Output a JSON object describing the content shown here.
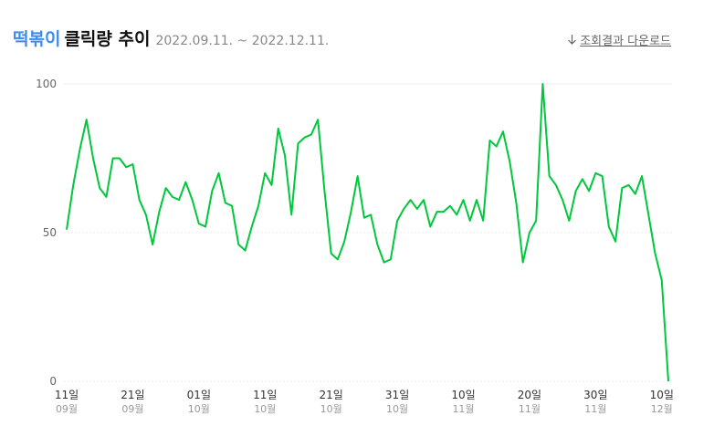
{
  "chart_data": {
    "type": "line",
    "keyword": "떡볶이",
    "title": "클릭량 추이",
    "date_range": "2022.09.11. ~ 2022.12.11.",
    "categories": [
      "11일",
      null,
      null,
      null,
      null,
      null,
      null,
      null,
      null,
      null,
      "21일",
      null,
      null,
      null,
      null,
      null,
      null,
      null,
      null,
      null,
      "01일",
      null,
      null,
      null,
      null,
      null,
      null,
      null,
      null,
      null,
      "11일",
      null,
      null,
      null,
      null,
      null,
      null,
      null,
      null,
      null,
      "21일",
      null,
      null,
      null,
      null,
      null,
      null,
      null,
      null,
      null,
      "31일",
      null,
      null,
      null,
      null,
      null,
      null,
      null,
      null,
      null,
      "10일",
      null,
      null,
      null,
      null,
      null,
      null,
      null,
      null,
      null,
      "20일",
      null,
      null,
      null,
      null,
      null,
      null,
      null,
      null,
      null,
      "30일",
      null,
      null,
      null,
      null,
      null,
      null,
      null,
      null,
      null,
      "10일",
      null
    ],
    "category_months": [
      "09월",
      null,
      null,
      null,
      null,
      null,
      null,
      null,
      null,
      null,
      "09월",
      null,
      null,
      null,
      null,
      null,
      null,
      null,
      null,
      null,
      "10월",
      null,
      null,
      null,
      null,
      null,
      null,
      null,
      null,
      null,
      "10월",
      null,
      null,
      null,
      null,
      null,
      null,
      null,
      null,
      null,
      "10월",
      null,
      null,
      null,
      null,
      null,
      null,
      null,
      null,
      null,
      "10월",
      null,
      null,
      null,
      null,
      null,
      null,
      null,
      null,
      null,
      "11월",
      null,
      null,
      null,
      null,
      null,
      null,
      null,
      null,
      null,
      "11월",
      null,
      null,
      null,
      null,
      null,
      null,
      null,
      null,
      null,
      "11월",
      null,
      null,
      null,
      null,
      null,
      null,
      null,
      null,
      null,
      "12월",
      null
    ],
    "values": [
      51,
      66,
      78,
      88,
      75,
      65,
      62,
      75,
      75,
      72,
      73,
      61,
      56,
      46,
      57,
      65,
      62,
      61,
      67,
      61,
      53,
      52,
      64,
      70,
      60,
      59,
      46,
      44,
      52,
      59,
      70,
      66,
      85,
      76,
      56,
      80,
      82,
      83,
      88,
      64,
      43,
      41,
      47,
      57,
      69,
      55,
      56,
      46,
      40,
      41,
      54,
      58,
      61,
      58,
      61,
      52,
      57,
      57,
      59,
      56,
      61,
      54,
      61,
      54,
      81,
      79,
      84,
      74,
      60,
      40,
      50,
      54,
      100,
      69,
      66,
      61,
      54,
      64,
      68,
      64,
      70,
      69,
      52,
      47,
      65,
      66,
      63,
      69,
      56,
      43,
      34,
      0
    ],
    "color": "#00c73c",
    "ylim": [
      0,
      100
    ],
    "yticks": [
      0,
      50,
      100
    ],
    "grid": true
  },
  "download_label": "조회결과 다운로드"
}
